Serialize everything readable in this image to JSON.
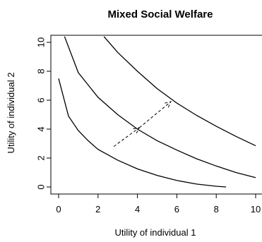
{
  "chart_data": {
    "type": "line",
    "title": "Mixed Social Welfare",
    "xlabel": "Utility of individual 1",
    "ylabel": "Utility of individual 2",
    "xlim": [
      -0.4,
      10.4
    ],
    "ylim": [
      -0.4,
      10.4
    ],
    "xticks": [
      "0",
      "2",
      "4",
      "6",
      "8",
      "10"
    ],
    "yticks": [
      "0",
      "2",
      "4",
      "6",
      "8",
      "10"
    ],
    "grid": false,
    "series": [
      {
        "x": [
          0,
          0.5,
          1,
          1.5,
          2,
          3,
          4,
          5,
          6,
          7,
          8,
          8.5
        ],
        "y": [
          7.5,
          4.9,
          3.9,
          3.2,
          2.6,
          1.85,
          1.25,
          0.8,
          0.45,
          0.2,
          0.05,
          0
        ]
      },
      {
        "x": [
          0.3,
          1,
          2,
          3,
          4,
          5,
          6,
          7,
          8,
          9,
          10
        ],
        "y": [
          10.4,
          7.9,
          6.2,
          5.0,
          4.0,
          3.2,
          2.55,
          1.95,
          1.45,
          1.0,
          0.65
        ]
      },
      {
        "x": [
          2.3,
          3,
          4,
          5,
          6,
          7,
          8,
          9,
          10
        ],
        "y": [
          10.4,
          9.3,
          8.0,
          6.8,
          5.8,
          4.95,
          4.2,
          3.5,
          2.85
        ]
      }
    ],
    "arrows": [
      {
        "from": [
          2.8,
          2.8
        ],
        "to": [
          4.1,
          4.1
        ]
      },
      {
        "from": [
          4.1,
          4.1
        ],
        "to": [
          5.7,
          5.9
        ]
      }
    ]
  }
}
